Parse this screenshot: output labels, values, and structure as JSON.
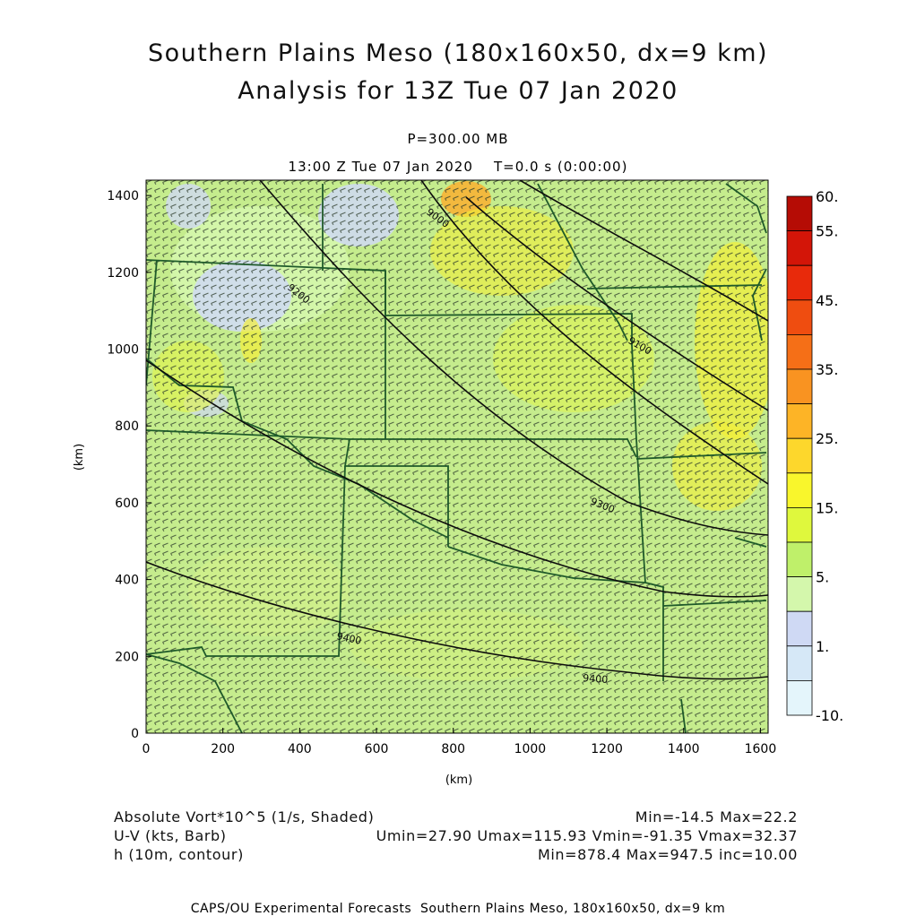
{
  "header": {
    "title_line1": "Southern Plains Meso (180x160x50, dx=9 km)",
    "title_line2": "Analysis for 13Z Tue 07 Jan 2020",
    "level": "P=300.00 MB",
    "valid_time": "13:00 Z Tue 07 Jan 2020    T=0.0 s (0:00:00)"
  },
  "map": {
    "xlabel": "(km)",
    "ylabel": "(km)",
    "x_ticks": [
      0,
      200,
      400,
      600,
      800,
      1000,
      1200,
      1400,
      1600
    ],
    "y_ticks": [
      0,
      200,
      400,
      600,
      800,
      1000,
      1200,
      1400
    ],
    "xlim": [
      0,
      1620
    ],
    "ylim": [
      0,
      1440
    ],
    "background_color": "#c5ec8d",
    "height_contours": [
      {
        "label": "9400"
      },
      {
        "label": "9400"
      },
      {
        "label": "9300"
      },
      {
        "label": "9200"
      },
      {
        "label": "9100"
      },
      {
        "label": "9000"
      }
    ]
  },
  "colorbar": {
    "labels": [
      "60.",
      "55.",
      "45.",
      "35.",
      "25.",
      "15.",
      "5.",
      "1.",
      "-10."
    ],
    "colors": [
      "#b50c05",
      "#d31508",
      "#e82a0b",
      "#ef4d10",
      "#f56f17",
      "#f99321",
      "#fdb426",
      "#fdd72c",
      "#f9f62c",
      "#dff83d",
      "#bff06a",
      "#d4f7ac",
      "#cfd9f4",
      "#d6e8f7",
      "#e4f5fb"
    ]
  },
  "legend": {
    "field1_name": "Absolute Vort*10^5 (1/s, Shaded)",
    "field1_stats": "Min=-14.5 Max=22.2",
    "field2_name": "U-V (kts, Barb)",
    "field2_stats": "Umin=27.90 Umax=115.93 Vmin=-91.35 Vmax=32.37",
    "field3_name": "h (10m, contour)",
    "field3_stats": "Min=878.4 Max=947.5 inc=10.00"
  },
  "footer": "CAPS/OU Experimental Forecasts  Southern Plains Meso, 180x160x50, dx=9 km"
}
